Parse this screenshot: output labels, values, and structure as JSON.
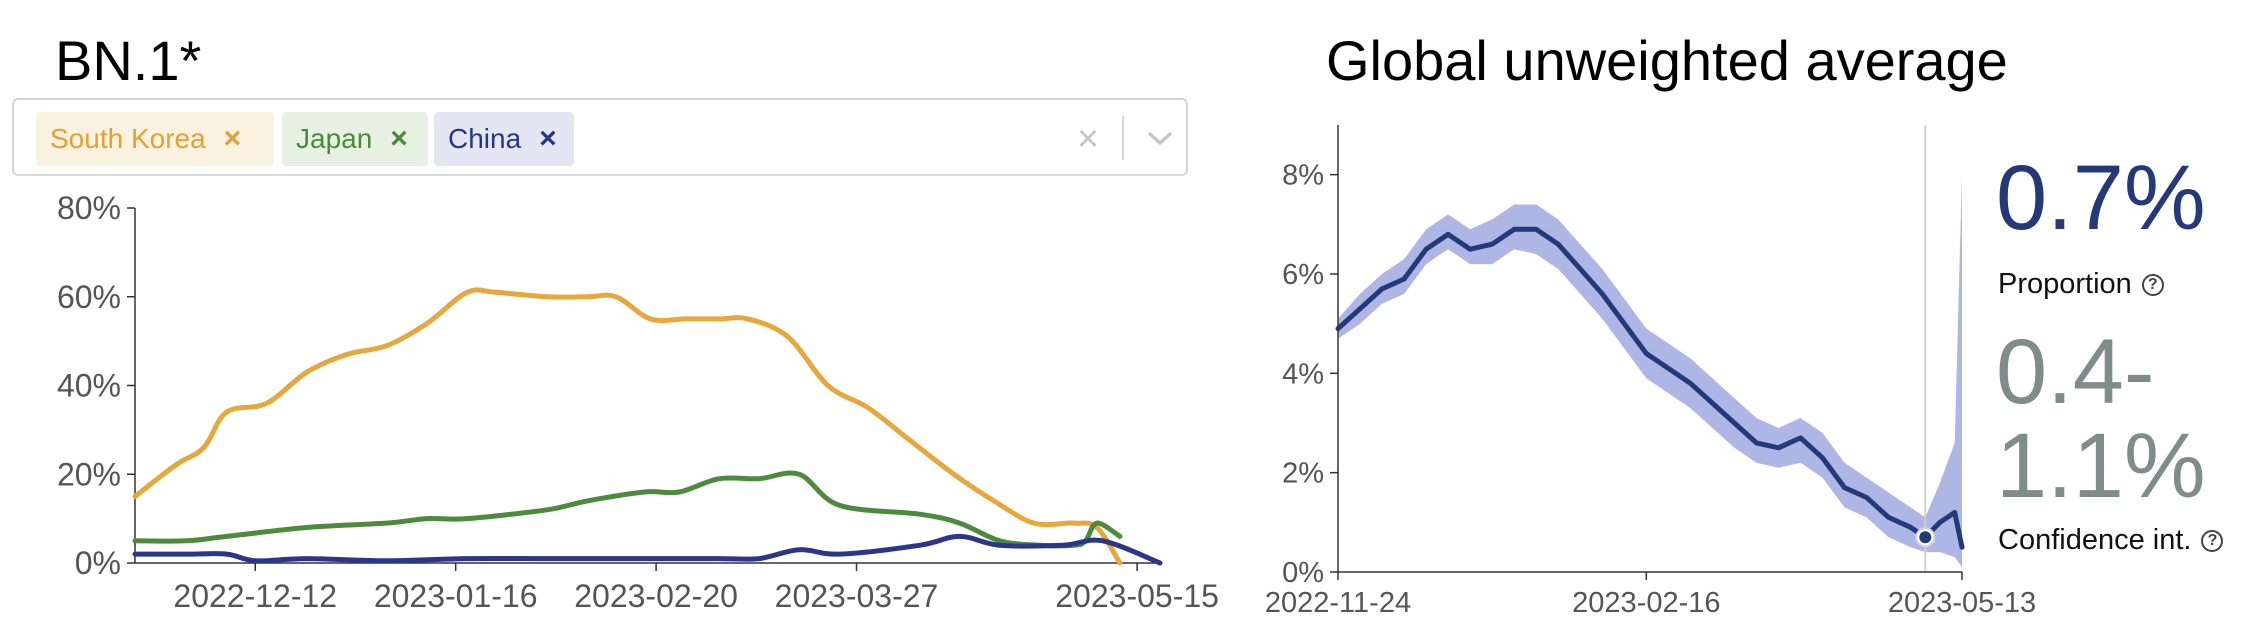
{
  "left_panel": {
    "title": "BN.1*",
    "selected": [
      {
        "label": "South Korea",
        "remove": "×"
      },
      {
        "label": "Japan",
        "remove": "×"
      },
      {
        "label": "China",
        "remove": "×"
      }
    ],
    "clear_icon": "×"
  },
  "right_panel": {
    "title": "Global unweighted average",
    "proportion_value": "0.7%",
    "proportion_label": "Proportion",
    "ci_value_line1": "0.4-",
    "ci_value_line2": "1.1%",
    "ci_label": "Confidence int.",
    "help_icon": "?"
  },
  "colors": {
    "south_korea": "#e6a83d",
    "japan": "#4e8a3e",
    "china": "#2c3686",
    "global_line": "#223a7a",
    "global_band": "#aab2e4",
    "ci_text": "#7e8c8a"
  },
  "chart_data": [
    {
      "type": "line",
      "title": "BN.1*",
      "x_ticks": [
        "2022-12-12",
        "2023-01-16",
        "2023-02-20",
        "2023-03-27",
        "2023-05-15"
      ],
      "y_ticks": [
        "0%",
        "20%",
        "40%",
        "60%",
        "80%"
      ],
      "ylim": [
        0,
        80
      ],
      "xlim": [
        "2022-11-21",
        "2023-05-19"
      ],
      "grid": false,
      "series": [
        {
          "name": "South Korea",
          "x": [
            "2022-11-21",
            "2022-11-28",
            "2022-12-03",
            "2022-12-07",
            "2022-12-14",
            "2022-12-21",
            "2022-12-28",
            "2023-01-04",
            "2023-01-11",
            "2023-01-18",
            "2023-01-23",
            "2023-02-01",
            "2023-02-08",
            "2023-02-13",
            "2023-02-19",
            "2023-02-25",
            "2023-03-03",
            "2023-03-08",
            "2023-03-15",
            "2023-03-22",
            "2023-03-29",
            "2023-04-05",
            "2023-04-13",
            "2023-04-20",
            "2023-04-27",
            "2023-05-04",
            "2023-05-08",
            "2023-05-12"
          ],
          "values": [
            15,
            22,
            26,
            34,
            36,
            43,
            47,
            49,
            54,
            61,
            61,
            60,
            60,
            60,
            55,
            55,
            55,
            55,
            51,
            40,
            35,
            28,
            20,
            14,
            9,
            9,
            8,
            0
          ]
        },
        {
          "name": "Japan",
          "x": [
            "2022-11-21",
            "2022-11-30",
            "2022-12-07",
            "2022-12-21",
            "2023-01-04",
            "2023-01-11",
            "2023-01-18",
            "2023-02-01",
            "2023-02-08",
            "2023-02-18",
            "2023-02-24",
            "2023-03-03",
            "2023-03-10",
            "2023-03-17",
            "2023-03-24",
            "2023-04-07",
            "2023-04-14",
            "2023-04-21",
            "2023-04-28",
            "2023-05-04",
            "2023-05-06",
            "2023-05-08",
            "2023-05-12"
          ],
          "values": [
            5,
            5,
            6,
            8,
            9,
            10,
            10,
            12,
            14,
            16,
            16,
            19,
            19,
            20,
            13,
            11,
            9,
            5,
            4,
            4,
            5,
            9,
            6
          ]
        },
        {
          "name": "China",
          "x": [
            "2022-11-21",
            "2022-11-30",
            "2022-12-07",
            "2022-12-12",
            "2022-12-21",
            "2023-01-04",
            "2023-01-18",
            "2023-02-01",
            "2023-02-15",
            "2023-02-22",
            "2023-03-03",
            "2023-03-10",
            "2023-03-17",
            "2023-03-24",
            "2023-04-07",
            "2023-04-14",
            "2023-04-21",
            "2023-05-02",
            "2023-05-09",
            "2023-05-19"
          ],
          "values": [
            2,
            2,
            2,
            0.5,
            1,
            0.5,
            1,
            1,
            1,
            1,
            1,
            1,
            3,
            2,
            4,
            6,
            4,
            4,
            5,
            0
          ]
        }
      ]
    },
    {
      "type": "line",
      "title": "Global unweighted average",
      "x_ticks": [
        "2022-11-24",
        "2023-02-16",
        "2023-05-13"
      ],
      "y_ticks": [
        "0%",
        "2%",
        "4%",
        "6%",
        "8%"
      ],
      "ylim": [
        0,
        9
      ],
      "xlim": [
        "2022-11-24",
        "2023-05-13"
      ],
      "grid": false,
      "marker": {
        "x": "2023-05-03",
        "value": 0.7
      },
      "series": [
        {
          "name": "Proportion",
          "x": [
            "2022-11-24",
            "2022-11-30",
            "2022-12-06",
            "2022-12-12",
            "2022-12-18",
            "2022-12-24",
            "2022-12-30",
            "2023-01-05",
            "2023-01-11",
            "2023-01-17",
            "2023-01-23",
            "2023-01-29",
            "2023-02-04",
            "2023-02-10",
            "2023-02-16",
            "2023-02-22",
            "2023-02-28",
            "2023-03-06",
            "2023-03-12",
            "2023-03-18",
            "2023-03-24",
            "2023-03-30",
            "2023-04-05",
            "2023-04-11",
            "2023-04-17",
            "2023-04-23",
            "2023-04-29",
            "2023-05-03",
            "2023-05-07",
            "2023-05-11",
            "2023-05-13"
          ],
          "values": [
            4.9,
            5.3,
            5.7,
            5.9,
            6.5,
            6.8,
            6.5,
            6.6,
            6.9,
            6.9,
            6.6,
            6.1,
            5.6,
            5.0,
            4.4,
            4.1,
            3.8,
            3.4,
            3.0,
            2.6,
            2.5,
            2.7,
            2.3,
            1.7,
            1.5,
            1.1,
            0.9,
            0.7,
            1.0,
            1.2,
            0.5
          ],
          "ci_lower": [
            4.7,
            5.0,
            5.4,
            5.6,
            6.2,
            6.5,
            6.2,
            6.2,
            6.5,
            6.4,
            6.1,
            5.6,
            5.1,
            4.5,
            3.9,
            3.6,
            3.3,
            2.9,
            2.5,
            2.2,
            2.1,
            2.2,
            1.9,
            1.3,
            1.1,
            0.7,
            0.5,
            0.4,
            0.4,
            0.3,
            0.1
          ],
          "ci_upper": [
            5.1,
            5.6,
            6.0,
            6.3,
            6.9,
            7.2,
            6.9,
            7.1,
            7.4,
            7.4,
            7.1,
            6.6,
            6.1,
            5.5,
            4.9,
            4.6,
            4.3,
            3.9,
            3.5,
            3.1,
            2.9,
            3.1,
            2.8,
            2.2,
            1.9,
            1.6,
            1.3,
            1.1,
            1.8,
            2.6,
            8.0
          ]
        }
      ]
    }
  ]
}
